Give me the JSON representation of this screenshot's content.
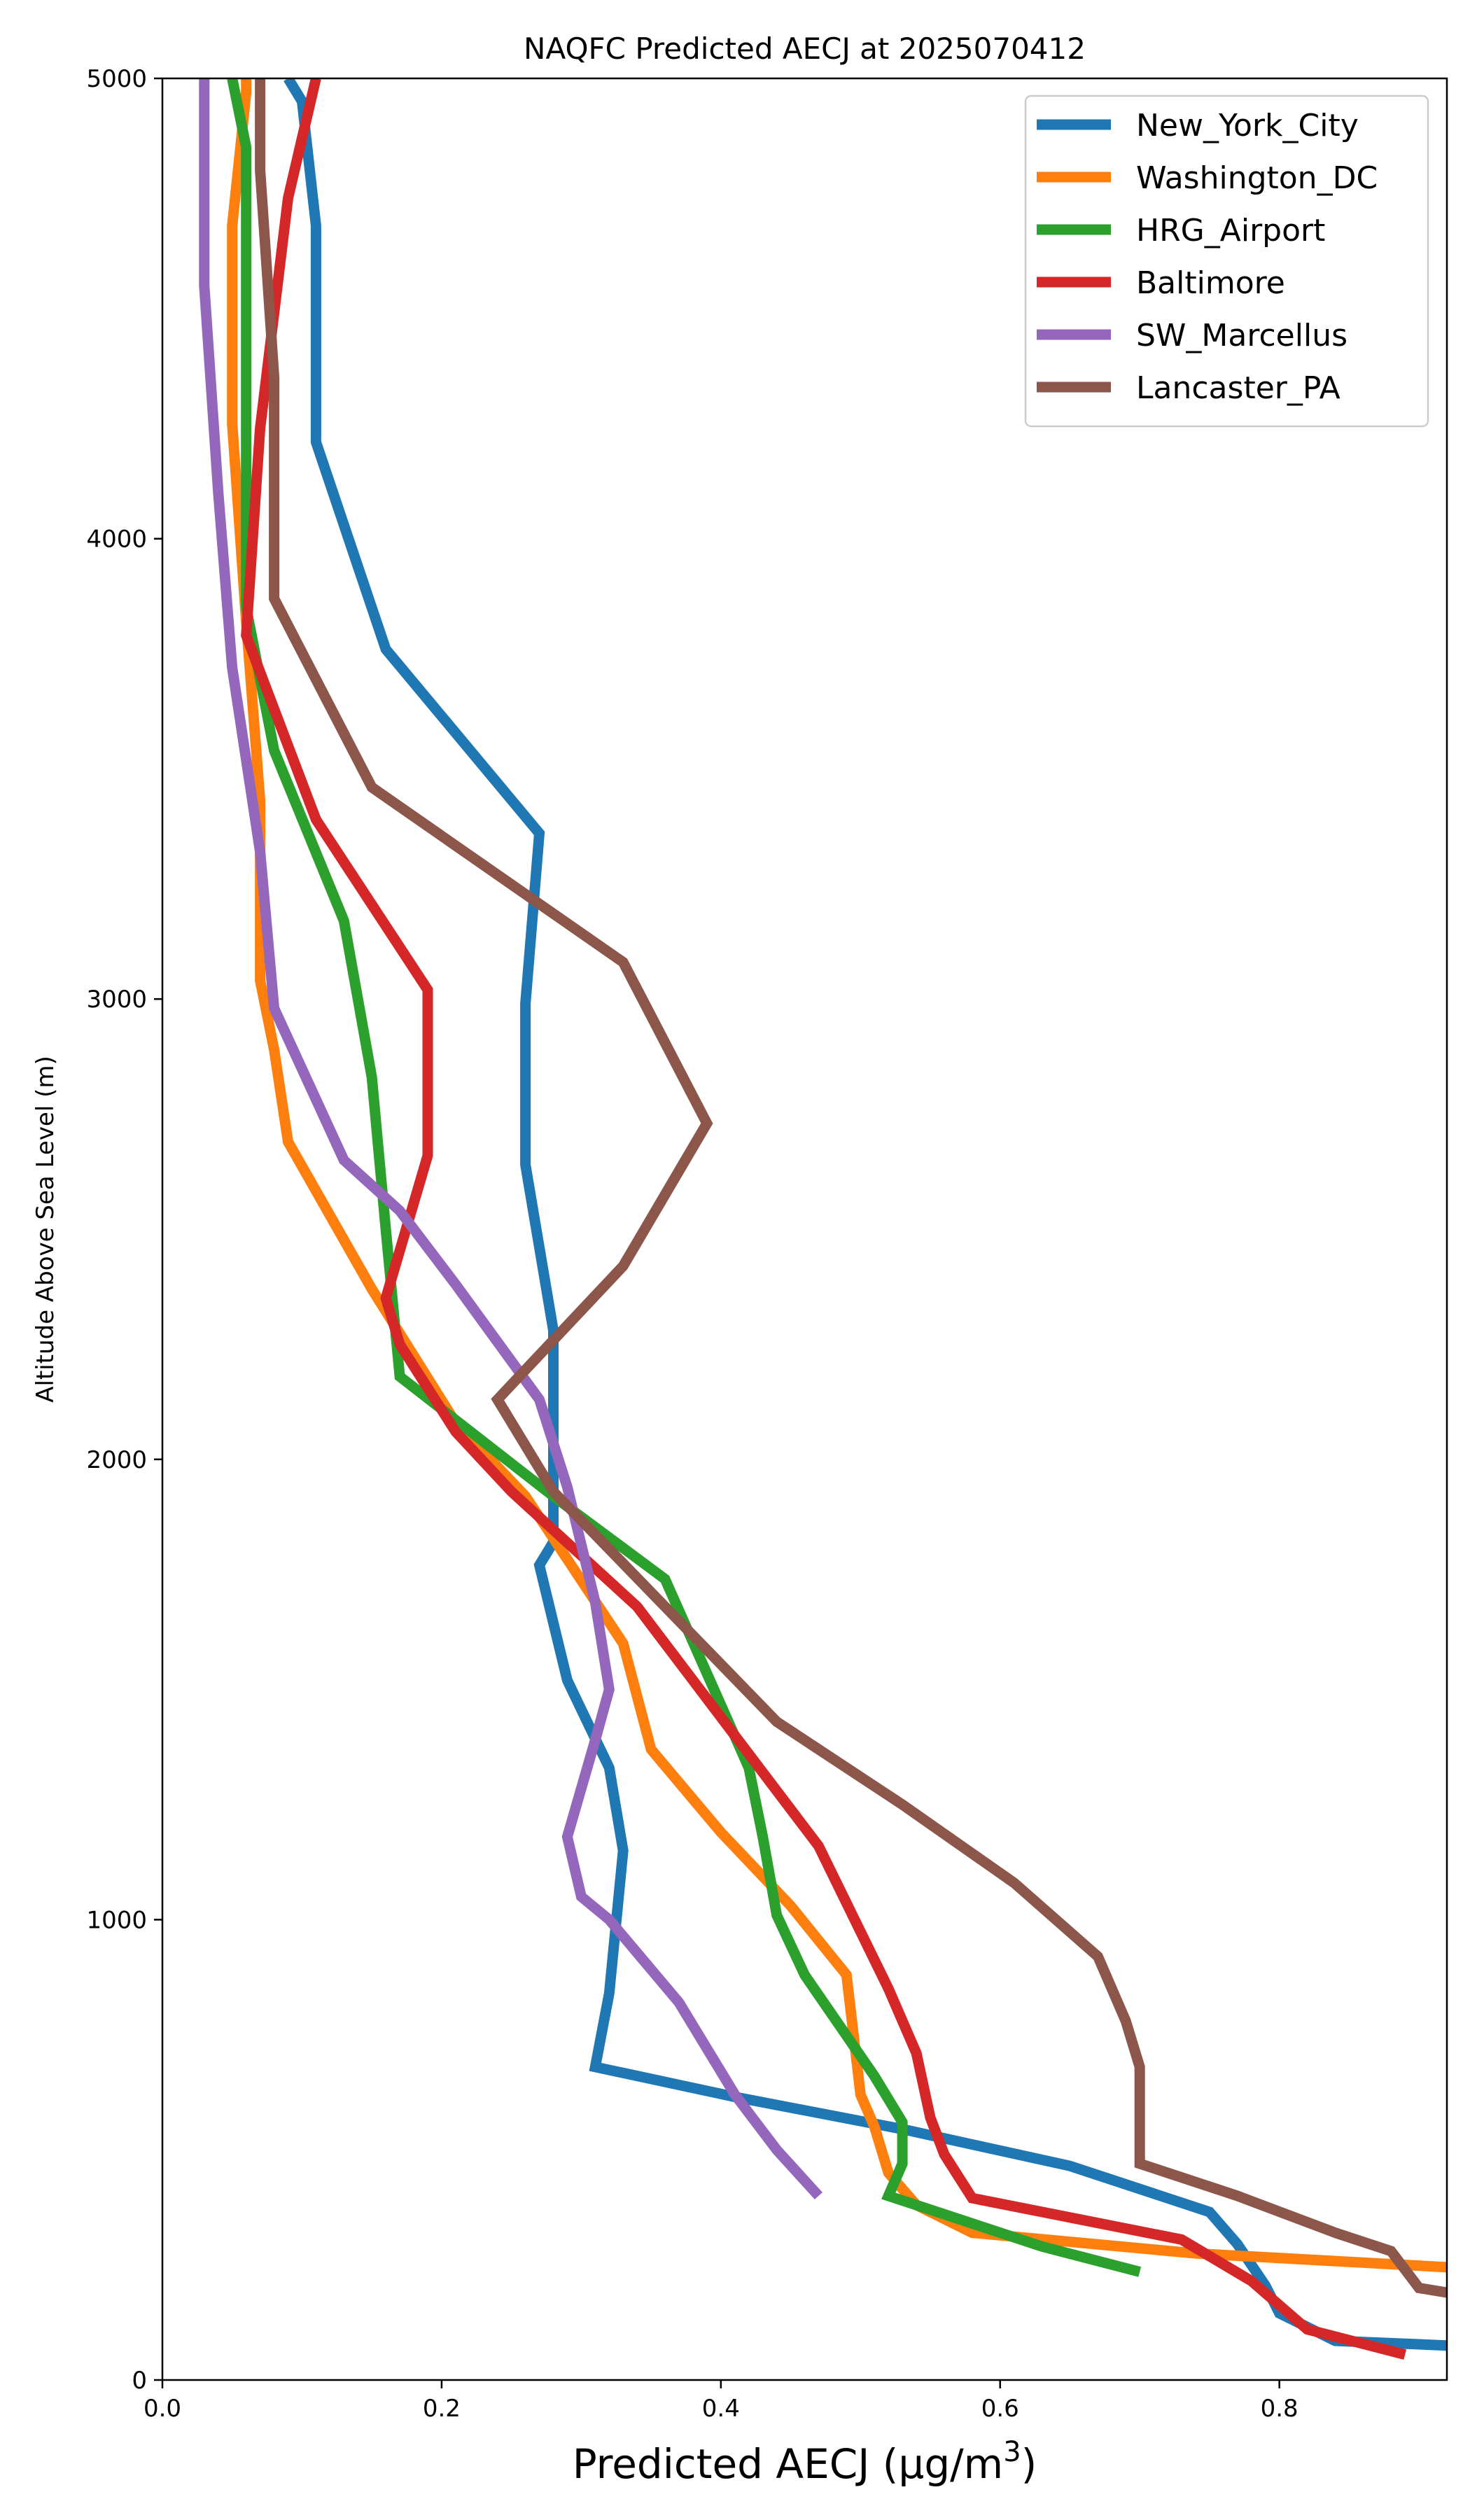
{
  "chart_data": {
    "type": "line",
    "title": "NAQFC Predicted AECJ at 2025070412",
    "xlabel": "Predicted AECJ (μg/m³)",
    "ylabel": "Altitude Above Sea Level (m)",
    "xlim": [
      0.0,
      0.92
    ],
    "ylim": [
      0,
      5000
    ],
    "xticks": [
      "0.0",
      "0.2",
      "0.4",
      "0.6",
      "0.8"
    ],
    "yticks": [
      "0",
      "1000",
      "2000",
      "3000",
      "4000",
      "5000"
    ],
    "grid": false,
    "legend_position": "top-right",
    "series": [
      {
        "name": "New_York_City",
        "color": "#1f77b4",
        "points": [
          [
            0.92,
            75
          ],
          [
            0.84,
            85
          ],
          [
            0.8,
            145
          ],
          [
            0.79,
            205
          ],
          [
            0.77,
            295
          ],
          [
            0.75,
            365
          ],
          [
            0.65,
            465
          ],
          [
            0.53,
            545
          ],
          [
            0.41,
            615
          ],
          [
            0.31,
            680
          ],
          [
            0.32,
            840
          ],
          [
            0.33,
            1150
          ],
          [
            0.32,
            1330
          ],
          [
            0.29,
            1520
          ],
          [
            0.27,
            1770
          ],
          [
            0.28,
            1820
          ],
          [
            0.28,
            2040
          ],
          [
            0.28,
            2280
          ],
          [
            0.26,
            2640
          ],
          [
            0.26,
            2990
          ],
          [
            0.27,
            3360
          ],
          [
            0.16,
            3760
          ],
          [
            0.11,
            4210
          ],
          [
            0.11,
            4680
          ],
          [
            0.1,
            4950
          ],
          [
            0.09,
            5000
          ]
        ]
      },
      {
        "name": "Washington_DC",
        "color": "#ff7f0e",
        "points": [
          [
            0.92,
            245
          ],
          [
            0.74,
            275
          ],
          [
            0.58,
            320
          ],
          [
            0.54,
            380
          ],
          [
            0.52,
            450
          ],
          [
            0.51,
            550
          ],
          [
            0.5,
            620
          ],
          [
            0.49,
            880
          ],
          [
            0.45,
            1030
          ],
          [
            0.4,
            1190
          ],
          [
            0.35,
            1370
          ],
          [
            0.33,
            1600
          ],
          [
            0.26,
            1920
          ],
          [
            0.21,
            2080
          ],
          [
            0.15,
            2370
          ],
          [
            0.09,
            2690
          ],
          [
            0.08,
            2890
          ],
          [
            0.07,
            3040
          ],
          [
            0.07,
            3430
          ],
          [
            0.06,
            3820
          ],
          [
            0.05,
            4250
          ],
          [
            0.05,
            4680
          ],
          [
            0.06,
            4970
          ],
          [
            0.06,
            5000
          ]
        ]
      },
      {
        "name": "HRG_Airport",
        "color": "#2ca02c",
        "points": [
          [
            0.7,
            235
          ],
          [
            0.63,
            290
          ],
          [
            0.52,
            400
          ],
          [
            0.53,
            470
          ],
          [
            0.53,
            560
          ],
          [
            0.51,
            660
          ],
          [
            0.46,
            880
          ],
          [
            0.44,
            1010
          ],
          [
            0.43,
            1180
          ],
          [
            0.42,
            1330
          ],
          [
            0.36,
            1740
          ],
          [
            0.28,
            1920
          ],
          [
            0.17,
            2180
          ],
          [
            0.16,
            2500
          ],
          [
            0.15,
            2830
          ],
          [
            0.13,
            3170
          ],
          [
            0.08,
            3540
          ],
          [
            0.06,
            3850
          ],
          [
            0.06,
            4200
          ],
          [
            0.06,
            4550
          ],
          [
            0.06,
            4850
          ],
          [
            0.05,
            5000
          ]
        ]
      },
      {
        "name": "Baltimore",
        "color": "#d62728",
        "points": [
          [
            0.89,
            55
          ],
          [
            0.82,
            110
          ],
          [
            0.78,
            215
          ],
          [
            0.73,
            305
          ],
          [
            0.58,
            395
          ],
          [
            0.56,
            490
          ],
          [
            0.55,
            570
          ],
          [
            0.54,
            710
          ],
          [
            0.52,
            850
          ],
          [
            0.47,
            1160
          ],
          [
            0.42,
            1360
          ],
          [
            0.34,
            1680
          ],
          [
            0.25,
            1930
          ],
          [
            0.21,
            2060
          ],
          [
            0.17,
            2250
          ],
          [
            0.16,
            2350
          ],
          [
            0.19,
            2660
          ],
          [
            0.19,
            3020
          ],
          [
            0.11,
            3390
          ],
          [
            0.06,
            3790
          ],
          [
            0.07,
            4240
          ],
          [
            0.09,
            4740
          ],
          [
            0.11,
            5000
          ]
        ]
      },
      {
        "name": "SW_Marcellus",
        "color": "#9467bd",
        "points": [
          [
            0.47,
            400
          ],
          [
            0.44,
            500
          ],
          [
            0.41,
            620
          ],
          [
            0.37,
            820
          ],
          [
            0.32,
            1000
          ],
          [
            0.3,
            1050
          ],
          [
            0.29,
            1180
          ],
          [
            0.31,
            1390
          ],
          [
            0.32,
            1500
          ],
          [
            0.31,
            1690
          ],
          [
            0.29,
            1940
          ],
          [
            0.27,
            2130
          ],
          [
            0.21,
            2380
          ],
          [
            0.17,
            2540
          ],
          [
            0.13,
            2650
          ],
          [
            0.08,
            2980
          ],
          [
            0.07,
            3320
          ],
          [
            0.05,
            3720
          ],
          [
            0.04,
            4100
          ],
          [
            0.03,
            4550
          ],
          [
            0.03,
            5000
          ]
        ]
      },
      {
        "name": "Lancaster_PA",
        "color": "#8c564b",
        "points": [
          [
            0.92,
            190
          ],
          [
            0.9,
            200
          ],
          [
            0.88,
            280
          ],
          [
            0.84,
            320
          ],
          [
            0.77,
            400
          ],
          [
            0.7,
            470
          ],
          [
            0.7,
            560
          ],
          [
            0.7,
            680
          ],
          [
            0.69,
            780
          ],
          [
            0.67,
            920
          ],
          [
            0.61,
            1080
          ],
          [
            0.53,
            1250
          ],
          [
            0.44,
            1430
          ],
          [
            0.36,
            1680
          ],
          [
            0.28,
            1930
          ],
          [
            0.24,
            2130
          ],
          [
            0.33,
            2420
          ],
          [
            0.39,
            2730
          ],
          [
            0.33,
            3080
          ],
          [
            0.15,
            3460
          ],
          [
            0.08,
            3870
          ],
          [
            0.08,
            4350
          ],
          [
            0.07,
            4800
          ],
          [
            0.07,
            5000
          ]
        ]
      }
    ]
  }
}
